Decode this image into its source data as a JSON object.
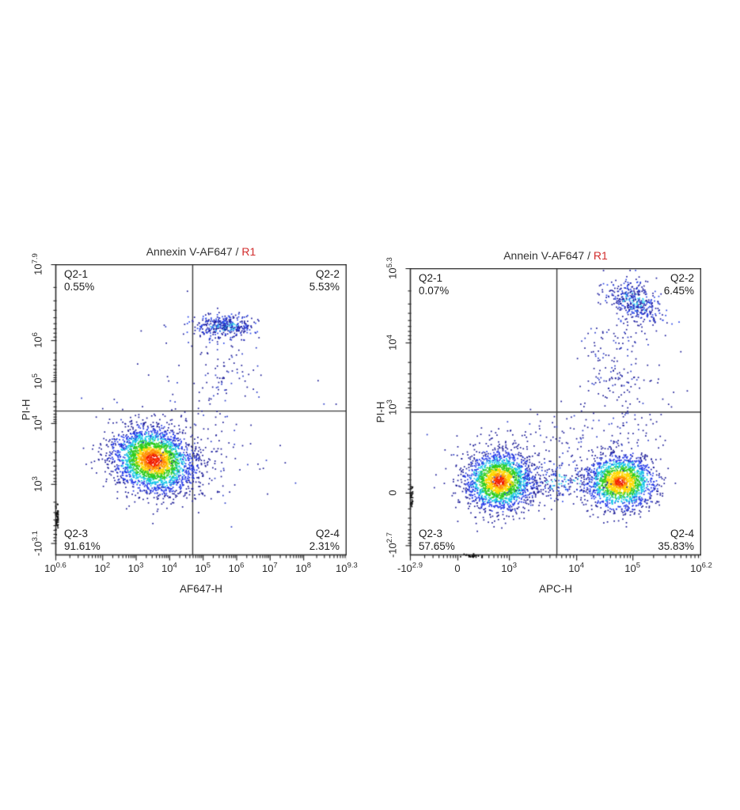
{
  "chart_data": {
    "type": "scatter",
    "subtype": "flow-cytometry-density-dot-plot",
    "grid": false,
    "plots": [
      {
        "title_main": "Annexin V-AF647 /",
        "title_gate": "R1",
        "xlabel": "AF647-H",
        "ylabel": "PI-H",
        "x_ticks": [
          {
            "base": "10",
            "exp": "0.6",
            "f": 0.0
          },
          {
            "base": "10",
            "exp": "2",
            "f": 0.161
          },
          {
            "base": "10",
            "exp": "3",
            "f": 0.276
          },
          {
            "base": "10",
            "exp": "4",
            "f": 0.391
          },
          {
            "base": "10",
            "exp": "5",
            "f": 0.506
          },
          {
            "base": "10",
            "exp": "6",
            "f": 0.621
          },
          {
            "base": "10",
            "exp": "7",
            "f": 0.736
          },
          {
            "base": "10",
            "exp": "8",
            "f": 0.851
          },
          {
            "base": "10",
            "exp": "9.3",
            "f": 1.0
          }
        ],
        "y_ticks": [
          {
            "base": "10",
            "exp": "7.9",
            "f": 0.0
          },
          {
            "base": "10",
            "exp": "6",
            "f": 0.261
          },
          {
            "base": "10",
            "exp": "5",
            "f": 0.402
          },
          {
            "base": "10",
            "exp": "4",
            "f": 0.546
          },
          {
            "base": "10",
            "exp": "3",
            "f": 0.755
          },
          {
            "base": "-10",
            "exp": "3.1",
            "f": 0.958
          }
        ],
        "quadrant_line": {
          "fx": 0.47,
          "fy": 0.503
        },
        "quadrants": [
          {
            "name": "Q2-1",
            "percent": "0.55%",
            "corner": "tl"
          },
          {
            "name": "Q2-2",
            "percent": "5.53%",
            "corner": "tr"
          },
          {
            "name": "Q2-3",
            "percent": "91.61%",
            "corner": "bl"
          },
          {
            "name": "Q2-4",
            "percent": "2.31%",
            "corner": "br"
          }
        ],
        "clusters": [
          {
            "type": "jet",
            "cx": 0.335,
            "cy": 0.672,
            "sx": 0.072,
            "sy": 0.058,
            "corr": 0.15,
            "n": 2600,
            "redScale": 1.0
          },
          {
            "type": "blue",
            "cx": 0.575,
            "cy": 0.212,
            "sx": 0.052,
            "sy": 0.02,
            "corr": 0.0,
            "n": 380
          },
          {
            "type": "navy",
            "cx": 0.57,
            "cy": 0.36,
            "sx": 0.055,
            "sy": 0.09,
            "corr": 0.0,
            "n": 95
          },
          {
            "type": "navy",
            "cx": 0.52,
            "cy": 0.66,
            "sx": 0.1,
            "sy": 0.08,
            "corr": 0.0,
            "n": 80
          },
          {
            "type": "navy",
            "cx": 0.42,
            "cy": 0.47,
            "sx": 0.22,
            "sy": 0.16,
            "corr": 0.0,
            "n": 50
          },
          {
            "type": "pile-left",
            "cy": 0.87,
            "sy": 0.025,
            "n": 40
          }
        ]
      },
      {
        "title_main": "Annein V-AF647 /",
        "title_gate": "R1",
        "xlabel": "APC-H",
        "ylabel": "PI-H",
        "x_ticks": [
          {
            "base": "-10",
            "exp": "2.9",
            "f": 0.0
          },
          {
            "base": "0",
            "exp": "",
            "f": 0.163
          },
          {
            "base": "10",
            "exp": "3",
            "f": 0.34
          },
          {
            "base": "10",
            "exp": "4",
            "f": 0.571
          },
          {
            "base": "10",
            "exp": "5",
            "f": 0.764
          },
          {
            "base": "10",
            "exp": "6.2",
            "f": 1.0
          }
        ],
        "y_ticks": [
          {
            "base": "10",
            "exp": "5.3",
            "f": 0.0
          },
          {
            "base": "10",
            "exp": "4",
            "f": 0.259
          },
          {
            "base": "10",
            "exp": "3",
            "f": 0.485
          },
          {
            "base": "0",
            "exp": "",
            "f": 0.782
          },
          {
            "base": "-10",
            "exp": "2.7",
            "f": 0.965
          }
        ],
        "quadrant_line": {
          "fx": 0.503,
          "fy": 0.5
        },
        "quadrants": [
          {
            "name": "Q2-1",
            "percent": "0.07%",
            "corner": "tl"
          },
          {
            "name": "Q2-2",
            "percent": "6.45%",
            "corner": "tr"
          },
          {
            "name": "Q2-3",
            "percent": "57.65%",
            "corner": "bl"
          },
          {
            "name": "Q2-4",
            "percent": "35.83%",
            "corner": "br"
          }
        ],
        "clusters": [
          {
            "type": "jet",
            "cx": 0.305,
            "cy": 0.74,
            "sx": 0.06,
            "sy": 0.052,
            "corr": 0.0,
            "n": 2000,
            "redScale": 0.8
          },
          {
            "type": "jet",
            "cx": 0.72,
            "cy": 0.744,
            "sx": 0.062,
            "sy": 0.048,
            "corr": 0.0,
            "n": 1700,
            "redScale": 0.7
          },
          {
            "type": "blue",
            "cx": 0.51,
            "cy": 0.74,
            "sx": 0.085,
            "sy": 0.033,
            "corr": 0.0,
            "n": 240
          },
          {
            "type": "blue",
            "cx": 0.77,
            "cy": 0.118,
            "sx": 0.05,
            "sy": 0.042,
            "corr": 0.5,
            "n": 430
          },
          {
            "type": "navy",
            "cx": 0.7,
            "cy": 0.33,
            "sx": 0.055,
            "sy": 0.095,
            "corr": 0.0,
            "n": 140
          },
          {
            "type": "navy",
            "cx": 0.53,
            "cy": 0.58,
            "sx": 0.2,
            "sy": 0.045,
            "corr": 0.0,
            "n": 110
          },
          {
            "type": "navy",
            "cx": 0.74,
            "cy": 0.5,
            "sx": 0.09,
            "sy": 0.09,
            "corr": 0.0,
            "n": 60
          },
          {
            "type": "pile-left",
            "cy": 0.79,
            "sy": 0.02,
            "n": 30
          },
          {
            "type": "pile-bottom",
            "cx": 0.21,
            "sx": 0.02,
            "n": 25
          }
        ]
      }
    ],
    "colors": {
      "gate_label": "#d22c2c",
      "axis_and_text": "#2b2b2b",
      "quadrant_line": "#3a3a3a",
      "density_scale": [
        "#e81400",
        "#ff8c00",
        "#ffd800",
        "#2ecc1e",
        "#18c8e8",
        "#2238e8",
        "#1a1a96"
      ]
    }
  }
}
